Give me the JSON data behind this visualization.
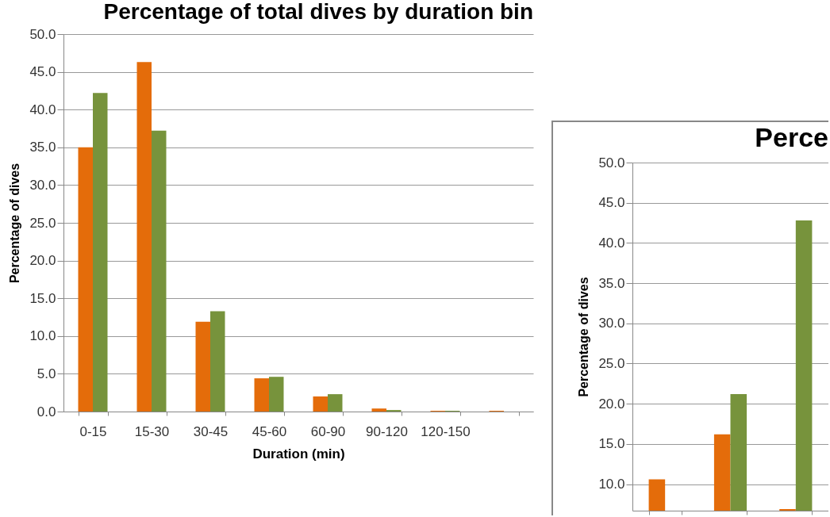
{
  "chart_data": [
    {
      "type": "bar",
      "title": "Percentage of total dives by duration bin",
      "xlabel": "Duration (min)",
      "ylabel": "Percentage of dives",
      "categories": [
        "0-15",
        "15-30",
        "30-45",
        "45-60",
        "60-90",
        "90-120",
        "120-150",
        null
      ],
      "series": [
        {
          "color": "#e46c0a",
          "values": [
            35.0,
            46.3,
            11.9,
            4.4,
            2.0,
            0.4,
            0.1,
            0.1
          ]
        },
        {
          "color": "#77933c",
          "values": [
            42.2,
            37.2,
            13.3,
            4.6,
            2.3,
            0.2,
            0.1,
            null
          ]
        }
      ],
      "ylim": [
        0,
        50
      ],
      "yticks": [
        {
          "value": 0,
          "label": "0.0"
        },
        {
          "value": 5,
          "label": "5.0"
        },
        {
          "value": 10,
          "label": "10.0"
        },
        {
          "value": 15,
          "label": "15.0"
        },
        {
          "value": 20,
          "label": "20.0"
        },
        {
          "value": 25,
          "label": "25.0"
        },
        {
          "value": 30,
          "label": "30.0"
        },
        {
          "value": 35,
          "label": "35.0"
        },
        {
          "value": 40,
          "label": "40.0"
        },
        {
          "value": 45,
          "label": "45.0"
        },
        {
          "value": 50,
          "label": "50.0"
        }
      ],
      "grid": "y",
      "legend": false
    },
    {
      "type": "bar",
      "title": "Perce",
      "ylabel": "Percentage of dives",
      "categories": [
        null,
        null,
        null
      ],
      "series": [
        {
          "color": "#e46c0a",
          "values": [
            10.6,
            16.2,
            6.9
          ]
        },
        {
          "color": "#77933c",
          "values": [
            null,
            21.2,
            42.8
          ]
        }
      ],
      "ylim": [
        6.7,
        50
      ],
      "yticks": [
        {
          "value": 10,
          "label": "10.0"
        },
        {
          "value": 15,
          "label": "15.0"
        },
        {
          "value": 20,
          "label": "20.0"
        },
        {
          "value": 25,
          "label": "25.0"
        },
        {
          "value": 30,
          "label": "30.0"
        },
        {
          "value": 35,
          "label": "35.0"
        },
        {
          "value": 40,
          "label": "40.0"
        },
        {
          "value": 45,
          "label": "45.0"
        },
        {
          "value": 50,
          "label": "50.0"
        }
      ],
      "grid": "y",
      "legend": false,
      "tick_labels": "y"
    }
  ]
}
